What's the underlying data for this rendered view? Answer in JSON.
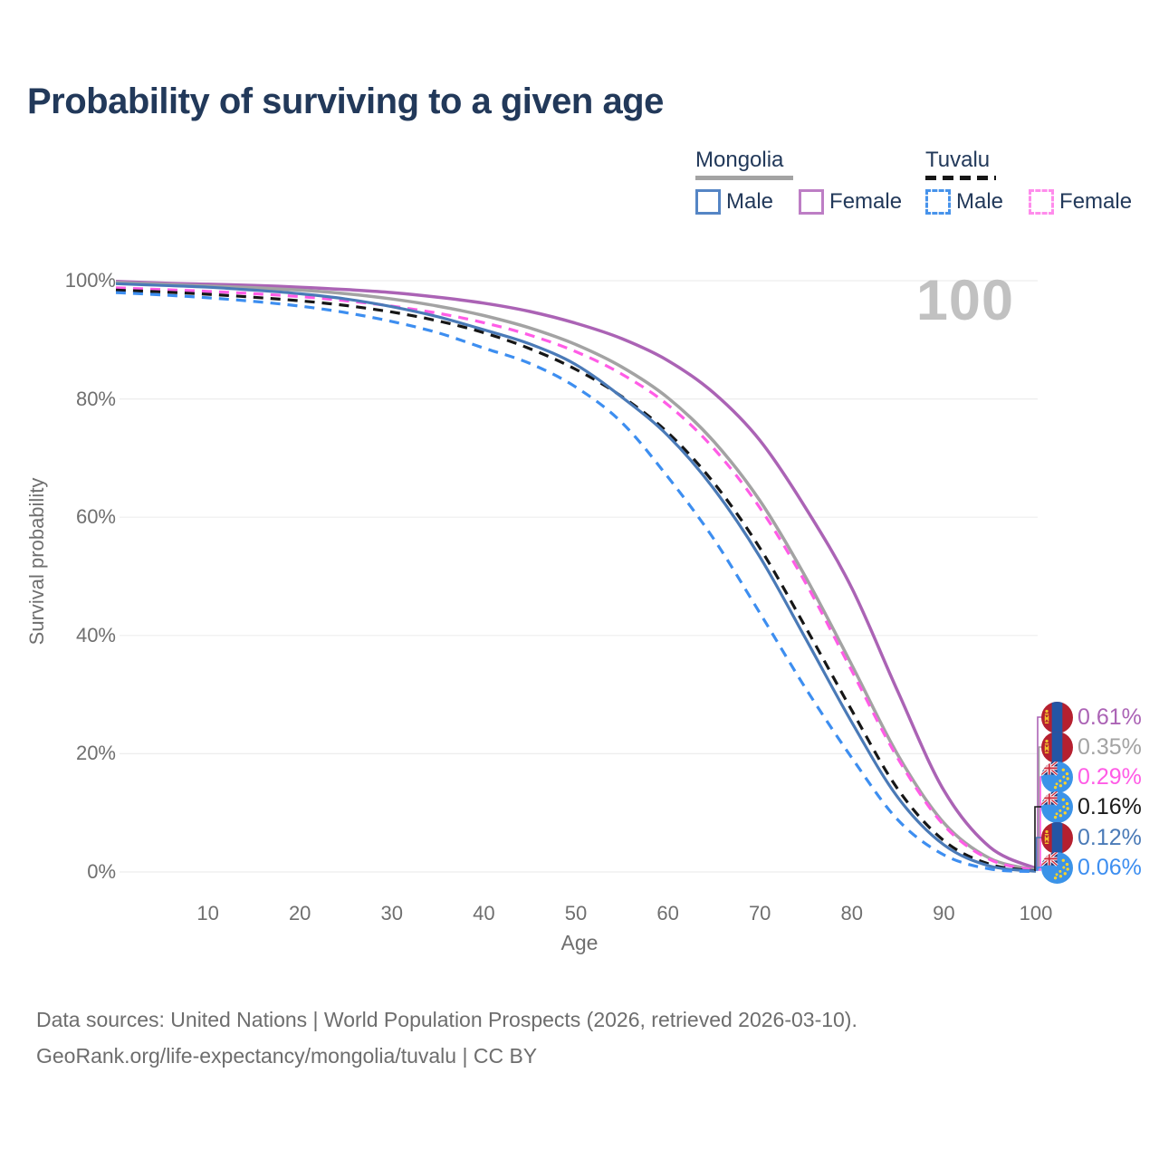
{
  "title": "Probability of surviving to a given age",
  "watermark": "100",
  "legend": {
    "groups": [
      {
        "name": "Mongolia",
        "underline_style": "solid",
        "underline_color": "#a3a3a3",
        "underline_width": 108,
        "items": [
          {
            "label": "Male",
            "color": "#5585c5",
            "dashed": false
          },
          {
            "label": "Female",
            "color": "#bd7ec5",
            "dashed": false
          }
        ]
      },
      {
        "name": "Tuvalu",
        "underline_style": "dashed",
        "underline_color": "#161616",
        "underline_width": 78,
        "items": [
          {
            "label": "Male",
            "color": "#4793eb",
            "dashed": true
          },
          {
            "label": "Female",
            "color": "#ff8cec",
            "dashed": true
          }
        ]
      }
    ]
  },
  "chart_data": {
    "type": "line",
    "title": "Probability of surviving to a given age",
    "xlabel": "Age",
    "ylabel": "Survival probability",
    "xlim": [
      0,
      100
    ],
    "ylim": [
      0,
      100
    ],
    "grid": "horizontal",
    "legend_position": "top-right",
    "x": [
      0,
      5,
      10,
      15,
      20,
      25,
      30,
      35,
      40,
      45,
      50,
      55,
      60,
      65,
      70,
      75,
      80,
      85,
      90,
      95,
      100
    ],
    "xticks": [
      10,
      20,
      30,
      40,
      50,
      60,
      70,
      80,
      90,
      100
    ],
    "yticks": [
      {
        "label": "0%",
        "value": 0
      },
      {
        "label": "20%",
        "value": 20
      },
      {
        "label": "40%",
        "value": 40
      },
      {
        "label": "60%",
        "value": 60
      },
      {
        "label": "80%",
        "value": 80
      },
      {
        "label": "100%",
        "value": 100
      }
    ],
    "series": [
      {
        "name": "Mongolia Female",
        "country": "Mongolia",
        "sex": "Female",
        "color": "#ab63b5",
        "dashed": false,
        "width": 3.5,
        "end_label": "0.61%",
        "values": [
          99.9,
          99.6,
          99.4,
          99.2,
          98.9,
          98.5,
          98.0,
          97.2,
          96.2,
          94.8,
          92.8,
          90.2,
          86.5,
          81.0,
          73.0,
          61.5,
          48.0,
          30.5,
          13.8,
          4.2,
          0.61
        ]
      },
      {
        "name": "Mongolia Both sexes",
        "country": "Mongolia",
        "sex": "Both",
        "color": "#a3a3a3",
        "dashed": false,
        "width": 3.5,
        "end_label": "0.35%",
        "values": [
          99.7,
          99.4,
          99.1,
          98.8,
          98.4,
          97.8,
          96.9,
          95.7,
          94.1,
          92.0,
          89.2,
          85.4,
          80.2,
          72.8,
          62.8,
          49.8,
          35.0,
          19.8,
          8.3,
          2.3,
          0.35
        ]
      },
      {
        "name": "Tuvalu Female",
        "country": "Tuvalu",
        "sex": "Female",
        "color": "#ff5ce6",
        "dashed": true,
        "width": 3.2,
        "end_label": "0.29%",
        "values": [
          98.8,
          98.5,
          98.2,
          97.8,
          97.3,
          96.6,
          95.7,
          94.5,
          92.9,
          90.8,
          88.0,
          84.2,
          79.0,
          71.6,
          61.6,
          48.8,
          34.0,
          19.2,
          7.9,
          2.1,
          0.29
        ]
      },
      {
        "name": "Tuvalu Both sexes",
        "country": "Tuvalu",
        "sex": "Both",
        "color": "#161616",
        "dashed": true,
        "width": 3.2,
        "end_label": "0.16%",
        "values": [
          98.4,
          98.1,
          97.7,
          97.2,
          96.6,
          95.8,
          94.7,
          93.2,
          91.2,
          88.5,
          85.0,
          80.4,
          74.3,
          65.8,
          54.8,
          41.3,
          27.3,
          14.0,
          5.3,
          1.3,
          0.16
        ]
      },
      {
        "name": "Mongolia Male",
        "country": "Mongolia",
        "sex": "Male",
        "color": "#4a7ab7",
        "dashed": false,
        "width": 3.2,
        "end_label": "0.12%",
        "values": [
          99.5,
          99.2,
          98.9,
          98.4,
          97.8,
          96.9,
          95.6,
          93.9,
          91.7,
          89.3,
          85.8,
          80.3,
          73.8,
          64.8,
          53.3,
          39.4,
          25.3,
          12.6,
          4.6,
          1.0,
          0.12
        ]
      },
      {
        "name": "Tuvalu Male",
        "country": "Tuvalu",
        "sex": "Male",
        "color": "#3d8ef0",
        "dashed": true,
        "width": 3.2,
        "end_label": "0.06%",
        "values": [
          98.0,
          97.6,
          97.1,
          96.5,
          95.7,
          94.6,
          93.1,
          91.2,
          88.6,
          86.0,
          82.0,
          76.0,
          66.8,
          56.3,
          43.8,
          31.0,
          19.3,
          8.8,
          2.9,
          0.5,
          0.06
        ]
      }
    ],
    "end_labels": [
      {
        "value": "0.61%",
        "flag": "mongolia",
        "color": "#ab63b5"
      },
      {
        "value": "0.35%",
        "flag": "mongolia",
        "color": "#a3a3a3"
      },
      {
        "value": "0.29%",
        "flag": "tuvalu",
        "color": "#ff5ce6"
      },
      {
        "value": "0.16%",
        "flag": "tuvalu",
        "color": "#1a1a1a"
      },
      {
        "value": "0.12%",
        "flag": "mongolia",
        "color": "#4a7ab7"
      },
      {
        "value": "0.06%",
        "flag": "tuvalu",
        "color": "#3d8ef0"
      }
    ]
  },
  "footer": {
    "line1": "Data sources: United Nations | World Population Prospects (2026, retrieved 2026-03-10).",
    "line2": "GeoRank.org/life-expectancy/mongolia/tuvalu | CC BY"
  }
}
